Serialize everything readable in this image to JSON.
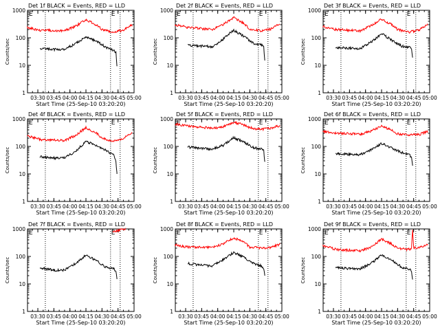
{
  "figure": {
    "background": "#ffffff"
  },
  "chart_data": [
    {
      "type": "line",
      "title": "Det 1f BLACK = Events, RED = LLD",
      "xlabel": "Start Time (25-Sep-10 03:20:20)",
      "ylabel": "Counts/sec",
      "yscale": "log",
      "ylim": [
        1,
        1000
      ],
      "ytick_labels": [
        "1",
        "10",
        "100",
        "1000"
      ],
      "x_tick_labels": [
        "03:30",
        "03:45",
        "04:00",
        "04:15",
        "04:30",
        "04:45",
        "05:00"
      ],
      "xlim": [
        "03:20:20",
        "05:00:00"
      ],
      "marker_label": "E",
      "vlines": [
        "03:37",
        "04:47",
        "04:38"
      ],
      "series": [
        {
          "color": "#ff0000",
          "x": [
            "03:20",
            "03:32",
            "03:55",
            "04:05",
            "04:15",
            "04:25",
            "04:30",
            "04:40",
            "04:50",
            "04:58"
          ],
          "y": [
            240,
            190,
            180,
            260,
            460,
            290,
            200,
            160,
            190,
            300
          ]
        },
        {
          "color": "#000000",
          "x": [
            "03:32",
            "03:45",
            "03:55",
            "04:05",
            "04:15",
            "04:25",
            "04:34",
            "04:41",
            "04:43",
            "04:44"
          ],
          "y": [
            40,
            38,
            38,
            60,
            110,
            75,
            45,
            35,
            30,
            10
          ]
        }
      ]
    },
    {
      "type": "line",
      "title": "Det 2f BLACK = Events, RED = LLD",
      "xlabel": "Start Time (25-Sep-10 03:20:20)",
      "ylabel": "Counts/sec",
      "yscale": "log",
      "ylim": [
        1,
        1000
      ],
      "ytick_labels": [
        "1",
        "10",
        "100",
        "1000"
      ],
      "x_tick_labels": [
        "03:30",
        "03:45",
        "04:00",
        "04:15",
        "04:30",
        "04:45",
        "05:00"
      ],
      "xlim": [
        "03:20:20",
        "05:00:00"
      ],
      "marker_label": "E",
      "vlines": [
        "03:37",
        "04:47",
        "04:38"
      ],
      "series": [
        {
          "color": "#ff0000",
          "x": [
            "03:20",
            "03:32",
            "03:55",
            "04:05",
            "04:15",
            "04:25",
            "04:30",
            "04:40",
            "04:50",
            "04:58"
          ],
          "y": [
            300,
            240,
            200,
            310,
            560,
            320,
            210,
            180,
            210,
            320
          ]
        },
        {
          "color": "#000000",
          "x": [
            "03:32",
            "03:45",
            "03:55",
            "04:05",
            "04:15",
            "04:25",
            "04:34",
            "04:41",
            "04:43",
            "04:44"
          ],
          "y": [
            55,
            50,
            48,
            90,
            190,
            110,
            60,
            55,
            45,
            15
          ]
        }
      ]
    },
    {
      "type": "line",
      "title": "Det 3f BLACK = Events, RED = LLD",
      "xlabel": "Start Time (25-Sep-10 03:20:20)",
      "ylabel": "Counts/sec",
      "yscale": "log",
      "ylim": [
        1,
        1000
      ],
      "ytick_labels": [
        "1",
        "10",
        "100",
        "1000"
      ],
      "x_tick_labels": [
        "03:30",
        "03:45",
        "04:00",
        "04:15",
        "04:30",
        "04:45",
        "05:00"
      ],
      "xlim": [
        "03:20:20",
        "05:00:00"
      ],
      "marker_label": "E",
      "vlines": [
        "03:37",
        "04:47",
        "04:38"
      ],
      "series": [
        {
          "color": "#ff0000",
          "x": [
            "03:20",
            "03:32",
            "03:55",
            "04:05",
            "04:15",
            "04:25",
            "04:30",
            "04:40",
            "04:50",
            "04:58"
          ],
          "y": [
            260,
            200,
            180,
            270,
            480,
            290,
            200,
            160,
            190,
            310
          ]
        },
        {
          "color": "#000000",
          "x": [
            "03:32",
            "03:45",
            "03:55",
            "04:05",
            "04:15",
            "04:25",
            "04:34",
            "04:41",
            "04:43",
            "04:44"
          ],
          "y": [
            45,
            42,
            40,
            70,
            140,
            80,
            50,
            45,
            40,
            20
          ]
        }
      ]
    },
    {
      "type": "line",
      "title": "Det 4f BLACK = Events, RED = LLD",
      "xlabel": "Start Time (25-Sep-10 03:20:20)",
      "ylabel": "Counts/sec",
      "yscale": "log",
      "ylim": [
        1,
        1000
      ],
      "ytick_labels": [
        "1",
        "10",
        "100",
        "1000"
      ],
      "x_tick_labels": [
        "03:30",
        "03:45",
        "04:00",
        "04:15",
        "04:30",
        "04:45",
        "05:00"
      ],
      "xlim": [
        "03:20:20",
        "05:00:00"
      ],
      "marker_label": "E",
      "vlines": [
        "03:37",
        "04:47",
        "04:38"
      ],
      "series": [
        {
          "color": "#ff0000",
          "x": [
            "03:20",
            "03:32",
            "03:55",
            "04:05",
            "04:15",
            "04:25",
            "04:30",
            "04:40",
            "04:50",
            "04:58"
          ],
          "y": [
            240,
            180,
            160,
            250,
            480,
            300,
            200,
            150,
            200,
            330
          ]
        },
        {
          "color": "#000000",
          "x": [
            "03:32",
            "03:45",
            "03:55",
            "04:05",
            "04:15",
            "04:25",
            "04:34",
            "04:41",
            "04:43",
            "04:44"
          ],
          "y": [
            42,
            38,
            38,
            65,
            150,
            110,
            70,
            50,
            30,
            10
          ]
        }
      ]
    },
    {
      "type": "line",
      "title": "Det 5f BLACK = Events, RED = LLD",
      "xlabel": "Start Time (25-Sep-10 03:20:20)",
      "ylabel": "Counts/sec",
      "yscale": "log",
      "ylim": [
        1,
        1000
      ],
      "ytick_labels": [
        "1",
        "10",
        "100",
        "1000"
      ],
      "x_tick_labels": [
        "03:30",
        "03:45",
        "04:00",
        "04:15",
        "04:30",
        "04:45",
        "05:00"
      ],
      "xlim": [
        "03:20:20",
        "05:00:00"
      ],
      "marker_label": "E",
      "vlines": [
        "03:37",
        "04:47",
        "04:38"
      ],
      "series": [
        {
          "color": "#ff0000",
          "x": [
            "03:20",
            "03:32",
            "03:55",
            "04:05",
            "04:15",
            "04:25",
            "04:30",
            "04:40",
            "04:50",
            "04:58"
          ],
          "y": [
            650,
            550,
            460,
            520,
            750,
            600,
            480,
            420,
            460,
            580
          ]
        },
        {
          "color": "#000000",
          "x": [
            "03:32",
            "03:45",
            "03:55",
            "04:05",
            "04:15",
            "04:25",
            "04:34",
            "04:41",
            "04:43",
            "04:44"
          ],
          "y": [
            95,
            85,
            80,
            110,
            210,
            140,
            90,
            80,
            70,
            30
          ]
        }
      ]
    },
    {
      "type": "line",
      "title": "Det 6f BLACK = Events, RED = LLD",
      "xlabel": "Start Time (25-Sep-10 03:20:20)",
      "ylabel": "Counts/sec",
      "yscale": "log",
      "ylim": [
        1,
        1000
      ],
      "ytick_labels": [
        "1",
        "10",
        "100",
        "1000"
      ],
      "x_tick_labels": [
        "03:30",
        "03:45",
        "04:00",
        "04:15",
        "04:30",
        "04:45",
        "05:00"
      ],
      "xlim": [
        "03:20:20",
        "05:00:00"
      ],
      "marker_label": "E",
      "vlines": [
        "03:37",
        "04:47",
        "04:38"
      ],
      "series": [
        {
          "color": "#ff0000",
          "x": [
            "03:20",
            "03:32",
            "03:55",
            "04:05",
            "04:15",
            "04:25",
            "04:30",
            "04:40",
            "04:50",
            "04:58"
          ],
          "y": [
            360,
            300,
            280,
            360,
            560,
            380,
            290,
            260,
            270,
            350
          ]
        },
        {
          "color": "#000000",
          "x": [
            "03:32",
            "03:45",
            "03:55",
            "04:05",
            "04:15",
            "04:25",
            "04:34",
            "04:41",
            "04:43",
            "04:44"
          ],
          "y": [
            55,
            52,
            50,
            75,
            130,
            85,
            60,
            50,
            40,
            20
          ]
        }
      ]
    },
    {
      "type": "line",
      "title": "Det 7f BLACK = Events, RED = LLD",
      "xlabel": "Start Time (25-Sep-10 03:20:20)",
      "ylabel": "Counts/sec",
      "yscale": "log",
      "ylim": [
        1,
        1000
      ],
      "ytick_labels": [
        "1",
        "10",
        "100",
        "1000"
      ],
      "x_tick_labels": [
        "03:30",
        "03:45",
        "04:00",
        "04:15",
        "04:30",
        "04:45",
        "05:00"
      ],
      "xlim": [
        "03:20:20",
        "05:00:00"
      ],
      "marker_label": "E",
      "vlines": [
        "03:37",
        "04:47",
        "04:38"
      ],
      "series": [
        {
          "color": "#ff0000",
          "x": [
            "04:40",
            "04:43",
            "04:46",
            "04:49",
            "04:52"
          ],
          "y": [
            800,
            850,
            900,
            950,
            1000
          ]
        },
        {
          "color": "#000000",
          "x": [
            "03:32",
            "03:45",
            "03:55",
            "04:05",
            "04:15",
            "04:25",
            "04:34",
            "04:41",
            "04:43",
            "04:44"
          ],
          "y": [
            38,
            32,
            32,
            55,
            110,
            70,
            40,
            35,
            30,
            15
          ]
        }
      ]
    },
    {
      "type": "line",
      "title": "Det 8f BLACK = Events, RED = LLD",
      "xlabel": "Start Time (25-Sep-10 03:20:20)",
      "ylabel": "Counts/sec",
      "yscale": "log",
      "ylim": [
        1,
        1000
      ],
      "ytick_labels": [
        "1",
        "10",
        "100",
        "1000"
      ],
      "x_tick_labels": [
        "03:30",
        "03:45",
        "04:00",
        "04:15",
        "04:30",
        "04:45",
        "05:00"
      ],
      "xlim": [
        "03:20:20",
        "05:00:00"
      ],
      "marker_label": "E",
      "vlines": [
        "03:37",
        "04:47",
        "04:38"
      ],
      "series": [
        {
          "color": "#ff0000",
          "x": [
            "03:20",
            "03:32",
            "03:55",
            "04:05",
            "04:15",
            "04:25",
            "04:30",
            "04:40",
            "04:50",
            "04:58"
          ],
          "y": [
            260,
            220,
            210,
            290,
            480,
            320,
            220,
            200,
            210,
            280
          ]
        },
        {
          "color": "#000000",
          "x": [
            "03:32",
            "03:45",
            "03:55",
            "04:05",
            "04:15",
            "04:25",
            "04:34",
            "04:41",
            "04:43",
            "04:44"
          ],
          "y": [
            55,
            48,
            45,
            75,
            140,
            90,
            55,
            45,
            35,
            20
          ]
        }
      ]
    },
    {
      "type": "line",
      "title": "Det 9f BLACK = Events, RED = LLD",
      "xlabel": "Start Time (25-Sep-10 03:20:20)",
      "ylabel": "Counts/sec",
      "yscale": "log",
      "ylim": [
        1,
        1000
      ],
      "ytick_labels": [
        "1",
        "10",
        "100",
        "1000"
      ],
      "x_tick_labels": [
        "03:30",
        "03:45",
        "04:00",
        "04:15",
        "04:30",
        "04:45",
        "05:00"
      ],
      "xlim": [
        "03:20:20",
        "05:00:00"
      ],
      "marker_label": "E",
      "vlines": [
        "03:37",
        "04:47",
        "04:38"
      ],
      "series": [
        {
          "color": "#ff0000",
          "x": [
            "03:20",
            "03:32",
            "03:55",
            "04:05",
            "04:15",
            "04:25",
            "04:30",
            "04:40",
            "04:43",
            "04:44",
            "04:45",
            "04:50",
            "04:58"
          ],
          "y": [
            250,
            180,
            160,
            220,
            420,
            280,
            200,
            180,
            190,
            950,
            200,
            210,
            280
          ]
        },
        {
          "color": "#000000",
          "x": [
            "03:32",
            "03:45",
            "03:55",
            "04:05",
            "04:15",
            "04:25",
            "04:34",
            "04:41",
            "04:43",
            "04:44"
          ],
          "y": [
            40,
            36,
            36,
            55,
            110,
            70,
            40,
            35,
            30,
            15
          ]
        }
      ]
    }
  ]
}
